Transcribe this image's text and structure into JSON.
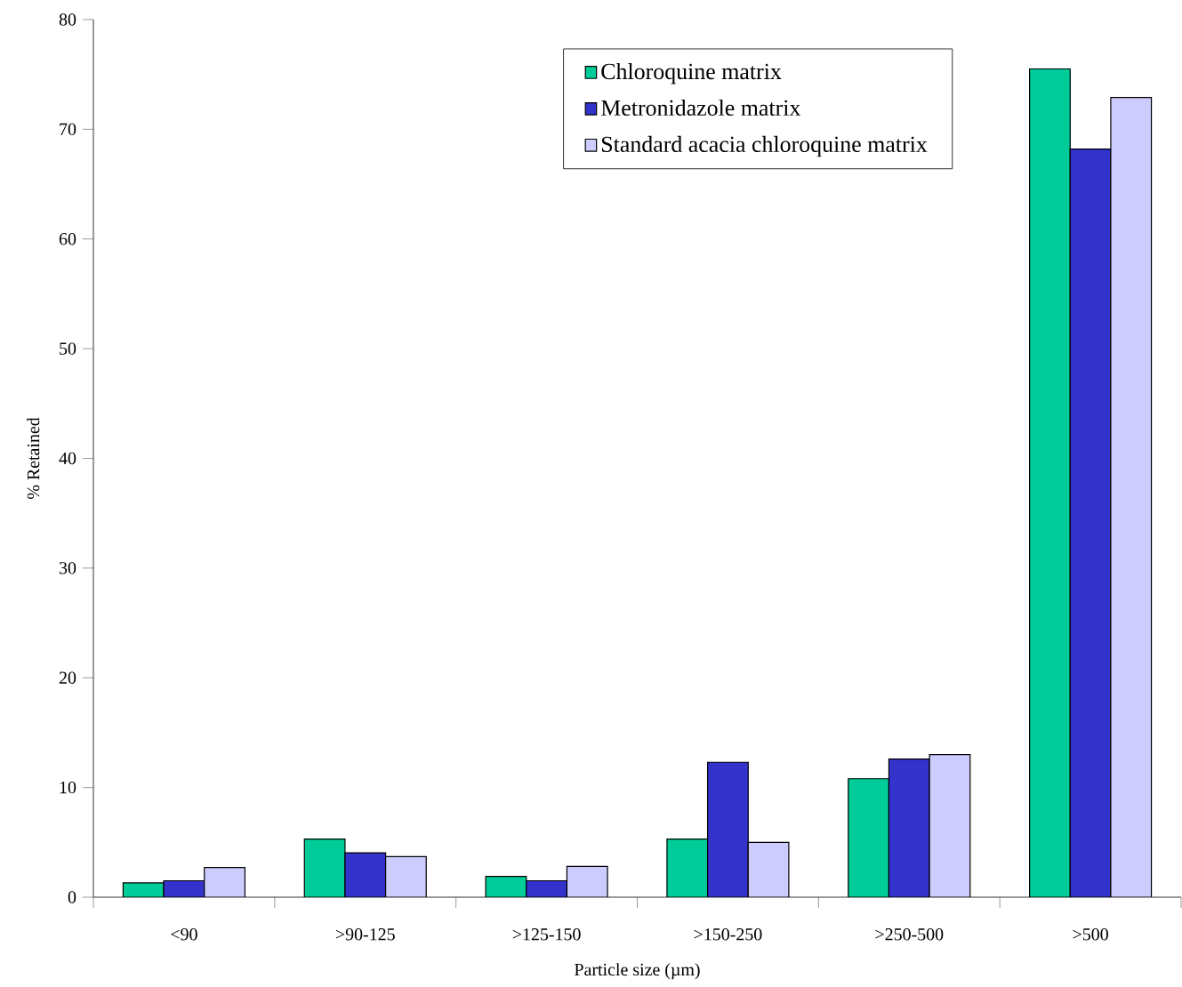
{
  "chart_data": {
    "type": "bar",
    "xlabel": "Particle size (µm)",
    "ylabel": "% Retained",
    "categories": [
      "<90",
      ">90-125",
      ">125-150",
      ">150-250",
      ">250-500",
      ">500"
    ],
    "series": [
      {
        "name": "Chloroquine matrix",
        "color": "#00cc99",
        "values": [
          1.3,
          5.3,
          1.9,
          5.3,
          10.8,
          75.5
        ]
      },
      {
        "name": "Metronidazole matrix",
        "color": "#3333cc",
        "values": [
          1.5,
          4.05,
          1.5,
          12.3,
          12.6,
          68.2
        ]
      },
      {
        "name": "Standard acacia chloroquine matrix",
        "color": "#ccccff",
        "values": [
          2.7,
          3.7,
          2.8,
          5.0,
          13.0,
          72.9
        ]
      }
    ],
    "ylim": [
      0,
      80
    ],
    "yticks": [
      0,
      10,
      20,
      30,
      40,
      50,
      60,
      70,
      80
    ],
    "grid": false,
    "legend": "top right"
  }
}
